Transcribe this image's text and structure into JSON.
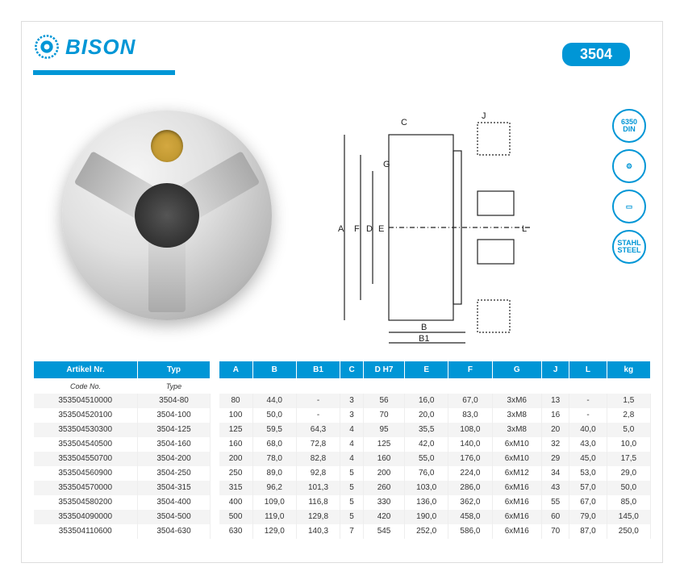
{
  "brand": "BISON",
  "model": "3504",
  "colors": {
    "accent": "#0096d6",
    "text": "#333333",
    "header_bg": "#0096d6"
  },
  "badges": [
    {
      "label": "6350\nDIN"
    },
    {
      "label": "⚙"
    },
    {
      "label": "▭"
    },
    {
      "label": "STAHL\nSTEEL"
    }
  ],
  "diagram_labels": [
    "A",
    "B",
    "B1",
    "C",
    "D",
    "E",
    "F",
    "G",
    "J",
    "L"
  ],
  "left_table": {
    "headers": [
      "Artikel Nr.",
      "Typ"
    ],
    "subheaders": [
      "Code No.",
      "Type"
    ],
    "rows": [
      [
        "353504510000",
        "3504-80"
      ],
      [
        "353504520100",
        "3504-100"
      ],
      [
        "353504530300",
        "3504-125"
      ],
      [
        "353504540500",
        "3504-160"
      ],
      [
        "353504550700",
        "3504-200"
      ],
      [
        "353504560900",
        "3504-250"
      ],
      [
        "353504570000",
        "3504-315"
      ],
      [
        "353504580200",
        "3504-400"
      ],
      [
        "353504090000",
        "3504-500"
      ],
      [
        "353504110600",
        "3504-630"
      ]
    ]
  },
  "right_table": {
    "headers": [
      "A",
      "B",
      "B1",
      "C",
      "D H7",
      "E",
      "F",
      "G",
      "J",
      "L",
      "kg"
    ],
    "rows": [
      [
        "80",
        "44,0",
        "-",
        "3",
        "56",
        "16,0",
        "67,0",
        "3xM6",
        "13",
        "-",
        "1,5"
      ],
      [
        "100",
        "50,0",
        "-",
        "3",
        "70",
        "20,0",
        "83,0",
        "3xM8",
        "16",
        "-",
        "2,8"
      ],
      [
        "125",
        "59,5",
        "64,3",
        "4",
        "95",
        "35,5",
        "108,0",
        "3xM8",
        "20",
        "40,0",
        "5,0"
      ],
      [
        "160",
        "68,0",
        "72,8",
        "4",
        "125",
        "42,0",
        "140,0",
        "6xM10",
        "32",
        "43,0",
        "10,0"
      ],
      [
        "200",
        "78,0",
        "82,8",
        "4",
        "160",
        "55,0",
        "176,0",
        "6xM10",
        "29",
        "45,0",
        "17,5"
      ],
      [
        "250",
        "89,0",
        "92,8",
        "5",
        "200",
        "76,0",
        "224,0",
        "6xM12",
        "34",
        "53,0",
        "29,0"
      ],
      [
        "315",
        "96,2",
        "101,3",
        "5",
        "260",
        "103,0",
        "286,0",
        "6xM16",
        "43",
        "57,0",
        "50,0"
      ],
      [
        "400",
        "109,0",
        "116,8",
        "5",
        "330",
        "136,0",
        "362,0",
        "6xM16",
        "55",
        "67,0",
        "85,0"
      ],
      [
        "500",
        "119,0",
        "129,8",
        "5",
        "420",
        "190,0",
        "458,0",
        "6xM16",
        "60",
        "79,0",
        "145,0"
      ],
      [
        "630",
        "129,0",
        "140,3",
        "7",
        "545",
        "252,0",
        "586,0",
        "6xM16",
        "70",
        "87,0",
        "250,0"
      ]
    ]
  }
}
